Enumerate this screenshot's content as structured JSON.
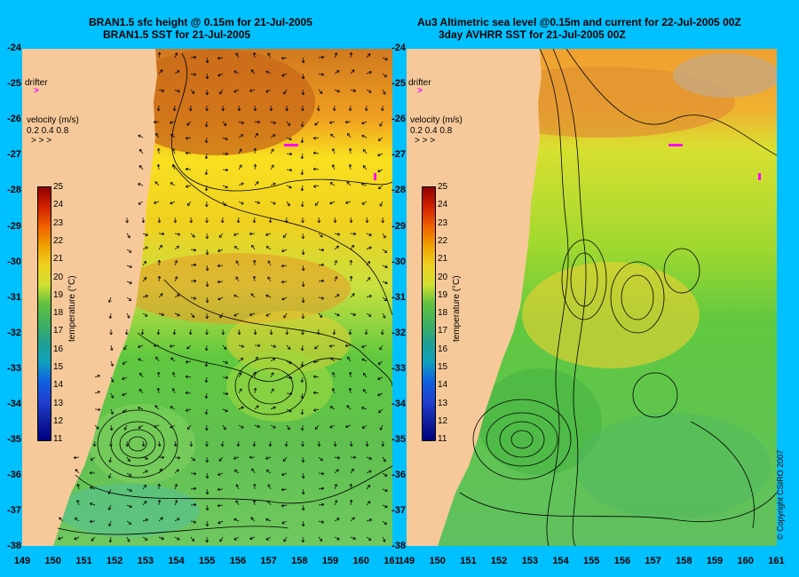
{
  "left": {
    "title_line1": "BRAN1.5 sfc height @ 0.15m for 21-Jul-2005",
    "title_line2": "BRAN1.5 SST for 21-Jul-2005"
  },
  "right": {
    "title_line1": "Au3 Altimetric sea level  @0.15m and current for 22-Jul-2005 00Z",
    "title_line2": "3day AVHRR SST for 21-Jul-2005 00Z"
  },
  "legend": {
    "drifter": "drifter",
    "velocity_title": "velocity (m/s)",
    "velocity_values": "0.2 0.4 0.8",
    "colorbar_label": "temperature (°C)",
    "colorbar_ticks": [
      "25",
      "24",
      "23",
      "22",
      "21",
      "20",
      "19",
      "18",
      "17",
      "16",
      "15",
      "14",
      "13",
      "12",
      "11"
    ]
  },
  "axes": {
    "lat_ticks": [
      "-24",
      "-25",
      "-26",
      "-27",
      "-28",
      "-29",
      "-30",
      "-31",
      "-32",
      "-33",
      "-34",
      "-35",
      "-36",
      "-37",
      "-38"
    ],
    "lon_ticks": [
      "149",
      "150",
      "151",
      "152",
      "153",
      "154",
      "155",
      "156",
      "157",
      "158",
      "159",
      "160",
      "161"
    ]
  },
  "copyright": "© Copyright CSIRO 2007",
  "colors": {
    "background": "#00c0ff",
    "land": "#f7c99a",
    "drifter": "#ff00ff"
  }
}
